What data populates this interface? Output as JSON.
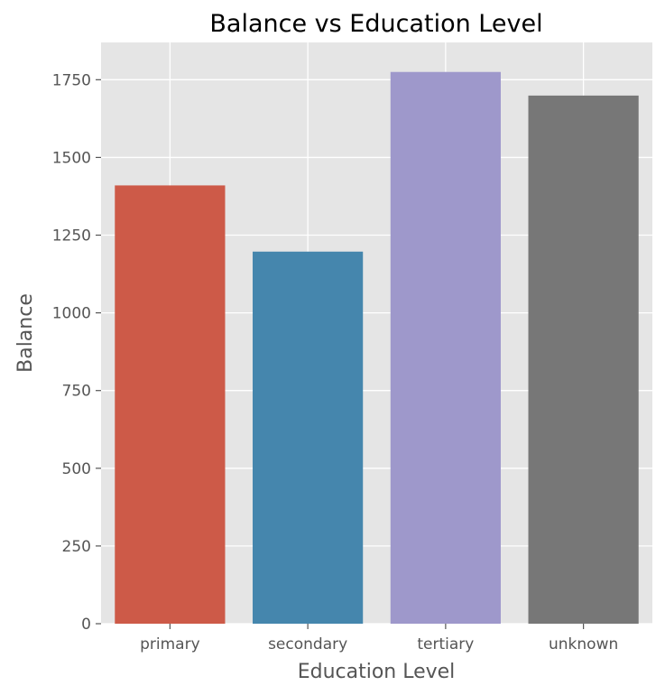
{
  "chart_data": {
    "type": "bar",
    "title": "Balance vs Education Level",
    "xlabel": "Education Level",
    "ylabel": "Balance",
    "categories": [
      "primary",
      "secondary",
      "tertiary",
      "unknown"
    ],
    "values": [
      1410,
      1197,
      1775,
      1699
    ],
    "bar_colors": [
      "#CD5A48",
      "#4586AD",
      "#9E98CB",
      "#777777"
    ],
    "ylim": [
      0,
      1870
    ],
    "yticks": [
      0,
      250,
      500,
      750,
      1000,
      1250,
      1500,
      1750
    ],
    "grid": true,
    "legend": "none",
    "style": {
      "panel_background": "#E5E5E5",
      "grid_color": "#FFFFFF",
      "tick_color": "#555555"
    }
  }
}
